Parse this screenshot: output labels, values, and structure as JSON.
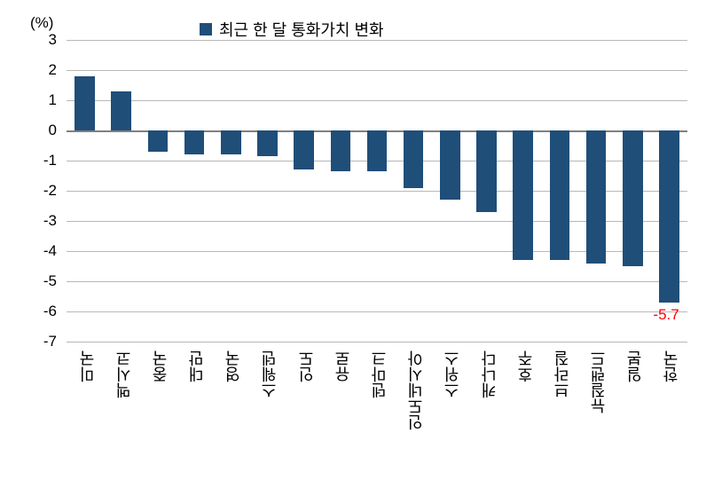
{
  "chart": {
    "type": "bar",
    "y_unit_label": "(%)",
    "legend_label": "최근 한 달 통화가치 변화",
    "categories": [
      "미국",
      "멕시코",
      "중국",
      "대만",
      "영국",
      "스웨덴",
      "인도",
      "유로",
      "덴마크",
      "인도네시아",
      "스위스",
      "캐나다",
      "호주",
      "브라질",
      "뉴질랜드",
      "일본",
      "한국"
    ],
    "values": [
      1.8,
      1.3,
      -0.7,
      -0.8,
      -0.8,
      -0.85,
      -1.3,
      -1.35,
      -1.35,
      -1.9,
      -2.3,
      -2.7,
      -4.3,
      -4.3,
      -4.4,
      -4.5,
      -5.7
    ],
    "bar_color": "#1f4e79",
    "ylim": [
      -7,
      3
    ],
    "ytick_step": 1,
    "y_ticks": [
      3,
      2,
      1,
      0,
      -1,
      -2,
      -3,
      -4,
      -5,
      -6,
      -7
    ],
    "background_color": "#ffffff",
    "grid_color": "#b8b8b8",
    "zero_line_color": "#808080",
    "bar_width_ratio": 0.55,
    "label_fontsize": 18,
    "tick_fontsize": 17,
    "highlight": {
      "category": "한국",
      "value_text": "-5.7",
      "color": "#ff0000"
    }
  }
}
